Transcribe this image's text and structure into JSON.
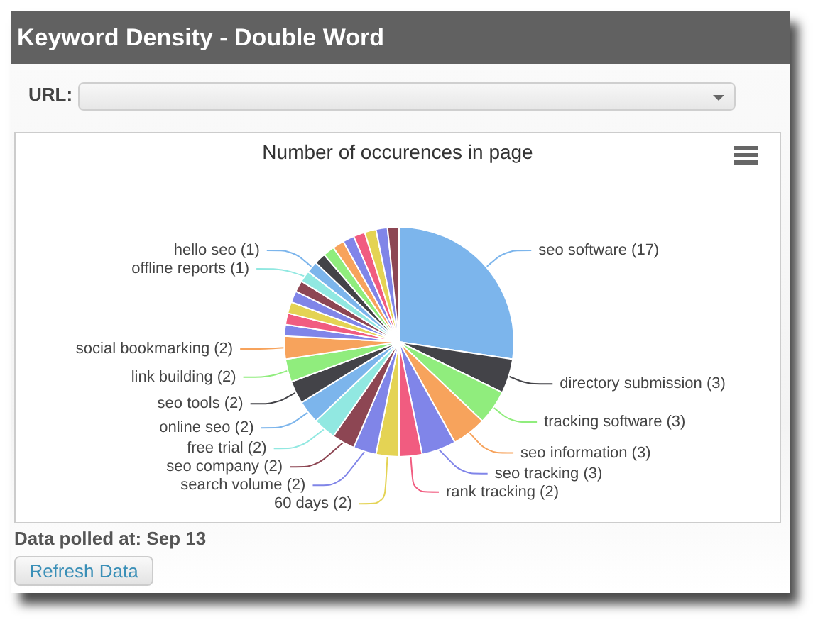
{
  "chart_data": {
    "type": "pie",
    "title": "Keyword Density - Double Word",
    "subtitle": "Number of occurences in page",
    "categories": [
      "seo software",
      "directory submission",
      "tracking software",
      "seo information",
      "seo tracking",
      "rank tracking",
      "60 days",
      "search volume",
      "seo company",
      "free trial",
      "online seo",
      "seo tools",
      "link building",
      "social bookmarking",
      null,
      null,
      null,
      null,
      null,
      "offline reports",
      "hello seo",
      null,
      null,
      null,
      null,
      null,
      null,
      null,
      null
    ],
    "values": [
      17,
      3,
      3,
      3,
      3,
      2,
      2,
      2,
      2,
      2,
      2,
      2,
      2,
      2,
      1,
      1,
      1,
      1,
      1,
      1,
      1,
      1,
      1,
      1,
      1,
      1,
      1,
      1,
      1
    ],
    "value_labels": [
      "(17)",
      "(3)",
      "(3)",
      "(3)",
      "(3)",
      "(2)",
      "(2)",
      "(2)",
      "(2)",
      "(2)",
      "(2)",
      "(2)",
      "(2)",
      "(2)",
      null,
      null,
      null,
      null,
      null,
      "(1)",
      "(1)",
      null,
      null,
      null,
      null,
      null,
      null,
      null,
      null
    ],
    "colors": [
      "#7cb5ec",
      "#434348",
      "#90ed7d",
      "#f7a35c",
      "#8085e9",
      "#f15c80",
      "#e4d354",
      "#8085e8",
      "#8d4653",
      "#91e8e1",
      "#7cb5ec",
      "#434348",
      "#90ed7d",
      "#f7a35c",
      "#8085e9",
      "#f15c80",
      "#e4d354",
      "#8085e8",
      "#8d4653",
      "#91e8e1",
      "#7cb5ec",
      "#434348",
      "#90ed7d",
      "#f7a35c",
      "#8085e9",
      "#f15c80",
      "#e4d354",
      "#8085e8",
      "#8d4653"
    ],
    "annotations": [
      "URL:",
      "Data polled at: Sep 13",
      "Refresh Data"
    ]
  }
}
